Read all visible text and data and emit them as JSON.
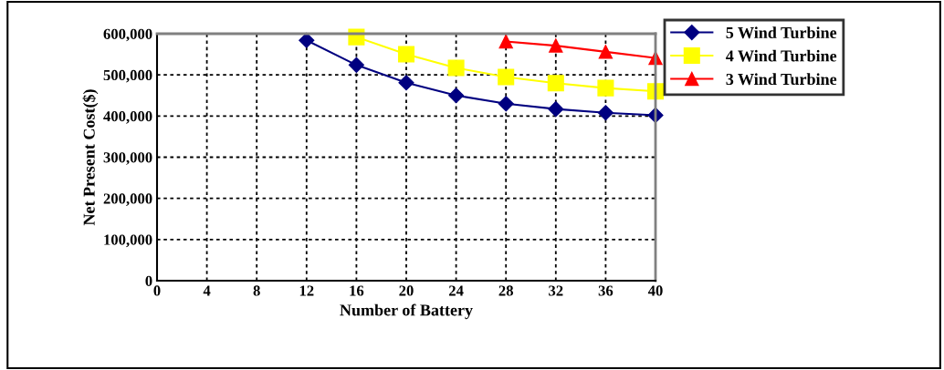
{
  "chart_data": {
    "type": "line",
    "xlabel": "Number of Battery",
    "ylabel": "Net Present Cost($)",
    "xlim": [
      0,
      40
    ],
    "xticks": [
      0,
      4,
      8,
      12,
      16,
      20,
      24,
      28,
      32,
      36,
      40
    ],
    "ylim": [
      0,
      600000
    ],
    "yticks": [
      {
        "value": 0,
        "label": "0"
      },
      {
        "value": 100000,
        "label": "100,000"
      },
      {
        "value": 200000,
        "label": "200,000"
      },
      {
        "value": 300000,
        "label": "300,000"
      },
      {
        "value": 400000,
        "label": "400,000"
      },
      {
        "value": 500000,
        "label": "500,000"
      },
      {
        "value": 600000,
        "label": "600,000"
      }
    ],
    "grid": true,
    "legend": "top right",
    "line_style": "solid",
    "series": [
      {
        "name": "5 Wind Turbine",
        "color": "#000080",
        "marker": "diamond",
        "x": [
          12,
          16,
          20,
          24,
          28,
          32,
          36,
          40
        ],
        "values": [
          584000,
          524000,
          481000,
          450000,
          430000,
          417000,
          408000,
          402000
        ]
      },
      {
        "name": "4 Wind Turbine",
        "color": "#ffff00",
        "marker": "square",
        "x": [
          16,
          20,
          24,
          28,
          32,
          36,
          40
        ],
        "values": [
          592000,
          550000,
          517000,
          495000,
          480000,
          468000,
          460000
        ]
      },
      {
        "name": "3 Wind Turbine",
        "color": "#ff0000",
        "marker": "triangle",
        "x": [
          28,
          32,
          36,
          40
        ],
        "values": [
          581000,
          571000,
          556000,
          541000
        ]
      }
    ]
  }
}
